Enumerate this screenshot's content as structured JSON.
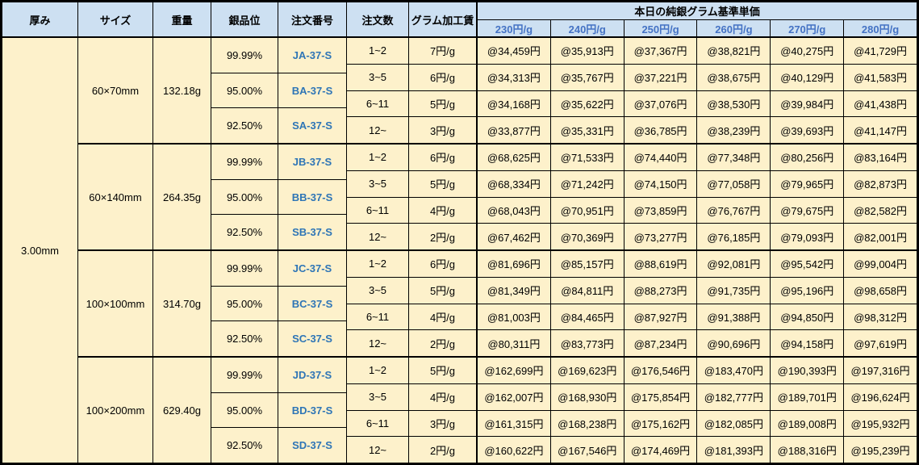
{
  "colors": {
    "header_bg": "#CDE0F2",
    "body_bg": "#FDF1CB",
    "border": "#000000",
    "rate_text": "#4472C4",
    "order_number_text": "#2E75B6"
  },
  "header": {
    "columns": [
      "厚み",
      "サイズ",
      "重量",
      "銀品位",
      "注文番号",
      "注文数",
      "グラム加工賃"
    ],
    "price_group_title": "本日の純銀グラム基準単価",
    "rates": [
      "230円/g",
      "240円/g",
      "250円/g",
      "260円/g",
      "270円/g",
      "280円/g"
    ]
  },
  "thickness": "3.00mm",
  "blocks": [
    {
      "size": "60×70mm",
      "weight": "132.18g",
      "purities": [
        {
          "purity": "99.99%",
          "order_no": "JA-37-S"
        },
        {
          "purity": "95.00%",
          "order_no": "BA-37-S"
        },
        {
          "purity": "92.50%",
          "order_no": "SA-37-S"
        }
      ],
      "tiers": [
        {
          "qty": "1~2",
          "fee": "7円/g",
          "prices": [
            "@34,459円",
            "@35,913円",
            "@37,367円",
            "@38,821円",
            "@40,275円",
            "@41,729円"
          ]
        },
        {
          "qty": "3~5",
          "fee": "6円/g",
          "prices": [
            "@34,313円",
            "@35,767円",
            "@37,221円",
            "@38,675円",
            "@40,129円",
            "@41,583円"
          ]
        },
        {
          "qty": "6~11",
          "fee": "5円/g",
          "prices": [
            "@34,168円",
            "@35,622円",
            "@37,076円",
            "@38,530円",
            "@39,984円",
            "@41,438円"
          ]
        },
        {
          "qty": "12~",
          "fee": "3円/g",
          "prices": [
            "@33,877円",
            "@35,331円",
            "@36,785円",
            "@38,239円",
            "@39,693円",
            "@41,147円"
          ]
        }
      ]
    },
    {
      "size": "60×140mm",
      "weight": "264.35g",
      "purities": [
        {
          "purity": "99.99%",
          "order_no": "JB-37-S"
        },
        {
          "purity": "95.00%",
          "order_no": "BB-37-S"
        },
        {
          "purity": "92.50%",
          "order_no": "SB-37-S"
        }
      ],
      "tiers": [
        {
          "qty": "1~2",
          "fee": "6円/g",
          "prices": [
            "@68,625円",
            "@71,533円",
            "@74,440円",
            "@77,348円",
            "@80,256円",
            "@83,164円"
          ]
        },
        {
          "qty": "3~5",
          "fee": "5円/g",
          "prices": [
            "@68,334円",
            "@71,242円",
            "@74,150円",
            "@77,058円",
            "@79,965円",
            "@82,873円"
          ]
        },
        {
          "qty": "6~11",
          "fee": "4円/g",
          "prices": [
            "@68,043円",
            "@70,951円",
            "@73,859円",
            "@76,767円",
            "@79,675円",
            "@82,582円"
          ]
        },
        {
          "qty": "12~",
          "fee": "2円/g",
          "prices": [
            "@67,462円",
            "@70,369円",
            "@73,277円",
            "@76,185円",
            "@79,093円",
            "@82,001円"
          ]
        }
      ]
    },
    {
      "size": "100×100mm",
      "weight": "314.70g",
      "purities": [
        {
          "purity": "99.99%",
          "order_no": "JC-37-S"
        },
        {
          "purity": "95.00%",
          "order_no": "BC-37-S"
        },
        {
          "purity": "92.50%",
          "order_no": "SC-37-S"
        }
      ],
      "tiers": [
        {
          "qty": "1~2",
          "fee": "6円/g",
          "prices": [
            "@81,696円",
            "@85,157円",
            "@88,619円",
            "@92,081円",
            "@95,542円",
            "@99,004円"
          ]
        },
        {
          "qty": "3~5",
          "fee": "5円/g",
          "prices": [
            "@81,349円",
            "@84,811円",
            "@88,273円",
            "@91,735円",
            "@95,196円",
            "@98,658円"
          ]
        },
        {
          "qty": "6~11",
          "fee": "4円/g",
          "prices": [
            "@81,003円",
            "@84,465円",
            "@87,927円",
            "@91,388円",
            "@94,850円",
            "@98,312円"
          ]
        },
        {
          "qty": "12~",
          "fee": "2円/g",
          "prices": [
            "@80,311円",
            "@83,773円",
            "@87,234円",
            "@90,696円",
            "@94,158円",
            "@97,619円"
          ]
        }
      ]
    },
    {
      "size": "100×200mm",
      "weight": "629.40g",
      "purities": [
        {
          "purity": "99.99%",
          "order_no": "JD-37-S"
        },
        {
          "purity": "95.00%",
          "order_no": "BD-37-S"
        },
        {
          "purity": "92.50%",
          "order_no": "SD-37-S"
        }
      ],
      "tiers": [
        {
          "qty": "1~2",
          "fee": "5円/g",
          "prices": [
            "@162,699円",
            "@169,623円",
            "@176,546円",
            "@183,470円",
            "@190,393円",
            "@197,316円"
          ]
        },
        {
          "qty": "3~5",
          "fee": "4円/g",
          "prices": [
            "@162,007円",
            "@168,930円",
            "@175,854円",
            "@182,777円",
            "@189,701円",
            "@196,624円"
          ]
        },
        {
          "qty": "6~11",
          "fee": "3円/g",
          "prices": [
            "@161,315円",
            "@168,238円",
            "@175,162円",
            "@182,085円",
            "@189,008円",
            "@195,932円"
          ]
        },
        {
          "qty": "12~",
          "fee": "2円/g",
          "prices": [
            "@160,622円",
            "@167,546円",
            "@174,469円",
            "@181,393円",
            "@188,316円",
            "@195,239円"
          ]
        }
      ]
    }
  ]
}
